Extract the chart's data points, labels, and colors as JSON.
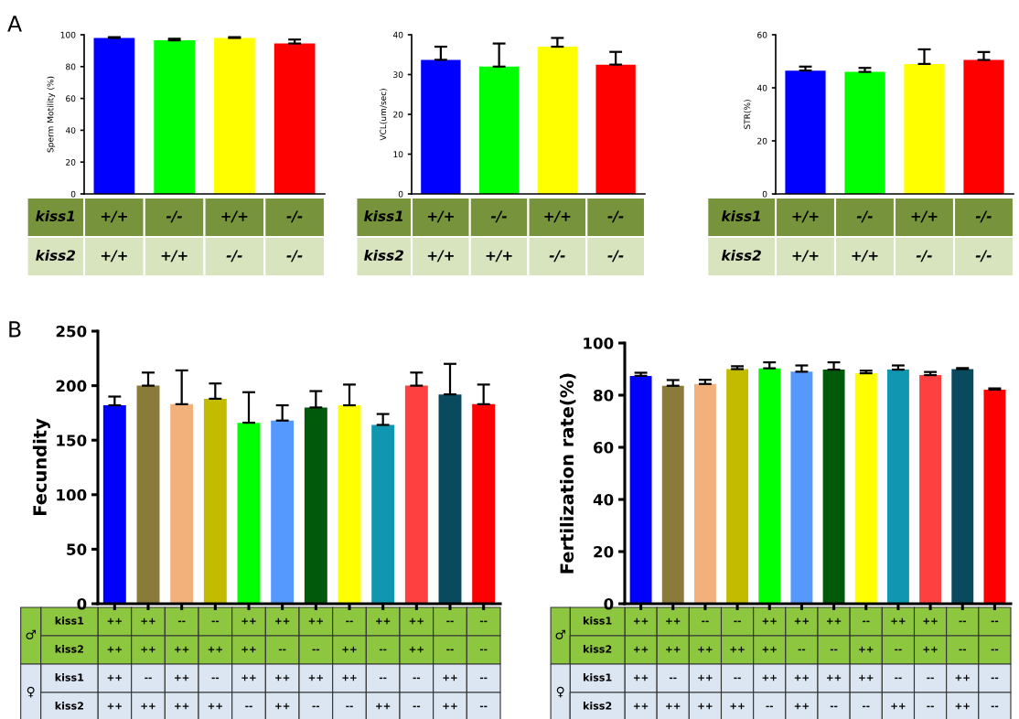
{
  "chart_data": [
    {
      "type": "bar",
      "title": "A",
      "ylabel": "Sperm Motility (%)",
      "categories": [
        "+/+\n+/+",
        "-/-\n+/+",
        "+/+\n-/-",
        "-/-\n-/-"
      ],
      "colors": [
        "#0000ff",
        "#00ff00",
        "#ffff00",
        "#ff0000"
      ],
      "values": [
        98,
        96.5,
        98,
        94.5
      ],
      "errors": [
        [
          98,
          98.5
        ],
        [
          96.5,
          97.5
        ],
        [
          98,
          98.5
        ],
        [
          94.5,
          97
        ]
      ],
      "ylim": [
        0,
        100
      ],
      "yticks": [
        0,
        20,
        40,
        60,
        80,
        100
      ],
      "annotations": [
        "kiss1",
        "kiss2"
      ],
      "grid": false
    },
    {
      "type": "bar",
      "ylabel": "VCL(um/sec)",
      "categories": [
        "+/+\n+/+",
        "-/-\n+/+",
        "+/+\n-/-",
        "-/-\n-/-"
      ],
      "colors": [
        "#0000ff",
        "#00ff00",
        "#ffff00",
        "#ff0000"
      ],
      "values": [
        33.7,
        32,
        37,
        32.5
      ],
      "errors": [
        [
          33.7,
          37
        ],
        [
          32,
          37.8
        ],
        [
          37,
          39.2
        ],
        [
          32.5,
          35.7
        ]
      ],
      "ylim": [
        0,
        40
      ],
      "yticks": [
        0,
        10,
        20,
        30,
        40
      ],
      "annotations": [
        "kiss1",
        "kiss2"
      ],
      "grid": false
    },
    {
      "type": "bar",
      "ylabel": "STR(%)",
      "categories": [
        "+/+\n+/+",
        "-/-\n+/+",
        "+/+\n-/-",
        "-/-\n-/-"
      ],
      "colors": [
        "#0000ff",
        "#00ff00",
        "#ffff00",
        "#ff0000"
      ],
      "values": [
        46.5,
        46,
        49,
        50.5
      ],
      "errors": [
        [
          46.5,
          48
        ],
        [
          46,
          47.5
        ],
        [
          49,
          54.5
        ],
        [
          50.5,
          53.5
        ]
      ],
      "ylim": [
        0,
        60
      ],
      "yticks": [
        0,
        20,
        40,
        60
      ],
      "annotations": [
        "kiss1",
        "kiss2"
      ],
      "grid": false
    },
    {
      "type": "bar",
      "title": "B",
      "ylabel": "Fecundity",
      "categories": [
        "++\n++\n++\n++",
        "++\n++\n--\n++",
        "--\n++\n++\n++",
        "--\n++\n--\n++",
        "++\n++\n++\n--",
        "++\n--\n++\n++",
        "++\n--\n++\n--",
        "--\n++\n++\n--",
        "++\n--\n--\n++",
        "++\n++\n--\n--",
        "--\n--\n++\n++",
        "--\n--\n--\n--"
      ],
      "colors": [
        "#0000ff",
        "#8b7b3a",
        "#f2b07a",
        "#c2bb00",
        "#00ff00",
        "#5599ff",
        "#005a0a",
        "#ffff00",
        "#1096b0",
        "#ff4040",
        "#0a4a5e",
        "#ff0000"
      ],
      "values": [
        182,
        200,
        183,
        188,
        166,
        168,
        180,
        182,
        164,
        200,
        192,
        183
      ],
      "errors": [
        [
          182,
          190
        ],
        [
          200,
          212
        ],
        [
          183,
          214
        ],
        [
          188,
          202
        ],
        [
          166,
          194
        ],
        [
          168,
          182
        ],
        [
          180,
          195
        ],
        [
          182,
          201
        ],
        [
          164,
          174
        ],
        [
          200,
          212
        ],
        [
          192,
          220
        ],
        [
          183,
          201
        ]
      ],
      "ylim": [
        0,
        250
      ],
      "yticks": [
        0,
        50,
        100,
        150,
        200,
        250
      ],
      "annotations": [
        "♂",
        "kiss1",
        "kiss2",
        "♀",
        "kiss1",
        "kiss2"
      ],
      "grid": false
    },
    {
      "type": "bar",
      "ylabel": "Fertilization rate(%)",
      "categories": [
        "++\n++\n++\n++",
        "++\n++\n--\n++",
        "--\n++\n++\n++",
        "--\n++\n--\n++",
        "++\n++\n++\n--",
        "++\n--\n++\n++",
        "++\n--\n++\n--",
        "--\n++\n++\n--",
        "++\n--\n--\n++",
        "++\n++\n--\n--",
        "--\n--\n++\n++",
        "--\n--\n--\n--"
      ],
      "colors": [
        "#0000ff",
        "#8b7b3a",
        "#f2b07a",
        "#c2bb00",
        "#00ff00",
        "#5599ff",
        "#005a0a",
        "#ffff00",
        "#1096b0",
        "#ff4040",
        "#0a4a5e",
        "#ff0000"
      ],
      "values": [
        87.4,
        83.6,
        84.3,
        90,
        90.3,
        89,
        89.8,
        88.4,
        89.8,
        87.7,
        90,
        82.1
      ],
      "errors": [
        [
          87.4,
          88.6
        ],
        [
          83.6,
          85.8
        ],
        [
          84.3,
          85.9
        ],
        [
          90,
          91.1
        ],
        [
          90.3,
          92.6
        ],
        [
          89,
          91.4
        ],
        [
          89.8,
          92.6
        ],
        [
          88.4,
          89.4
        ],
        [
          89.8,
          91.4
        ],
        [
          87.7,
          88.9
        ],
        [
          90,
          90.4
        ],
        [
          82.1,
          82.6
        ]
      ],
      "ylim": [
        0,
        100
      ],
      "yticks": [
        0,
        20,
        40,
        60,
        80,
        100
      ],
      "annotations": [
        "♂",
        "kiss1",
        "kiss2",
        "♀",
        "kiss1",
        "kiss2"
      ],
      "grid": false
    }
  ]
}
